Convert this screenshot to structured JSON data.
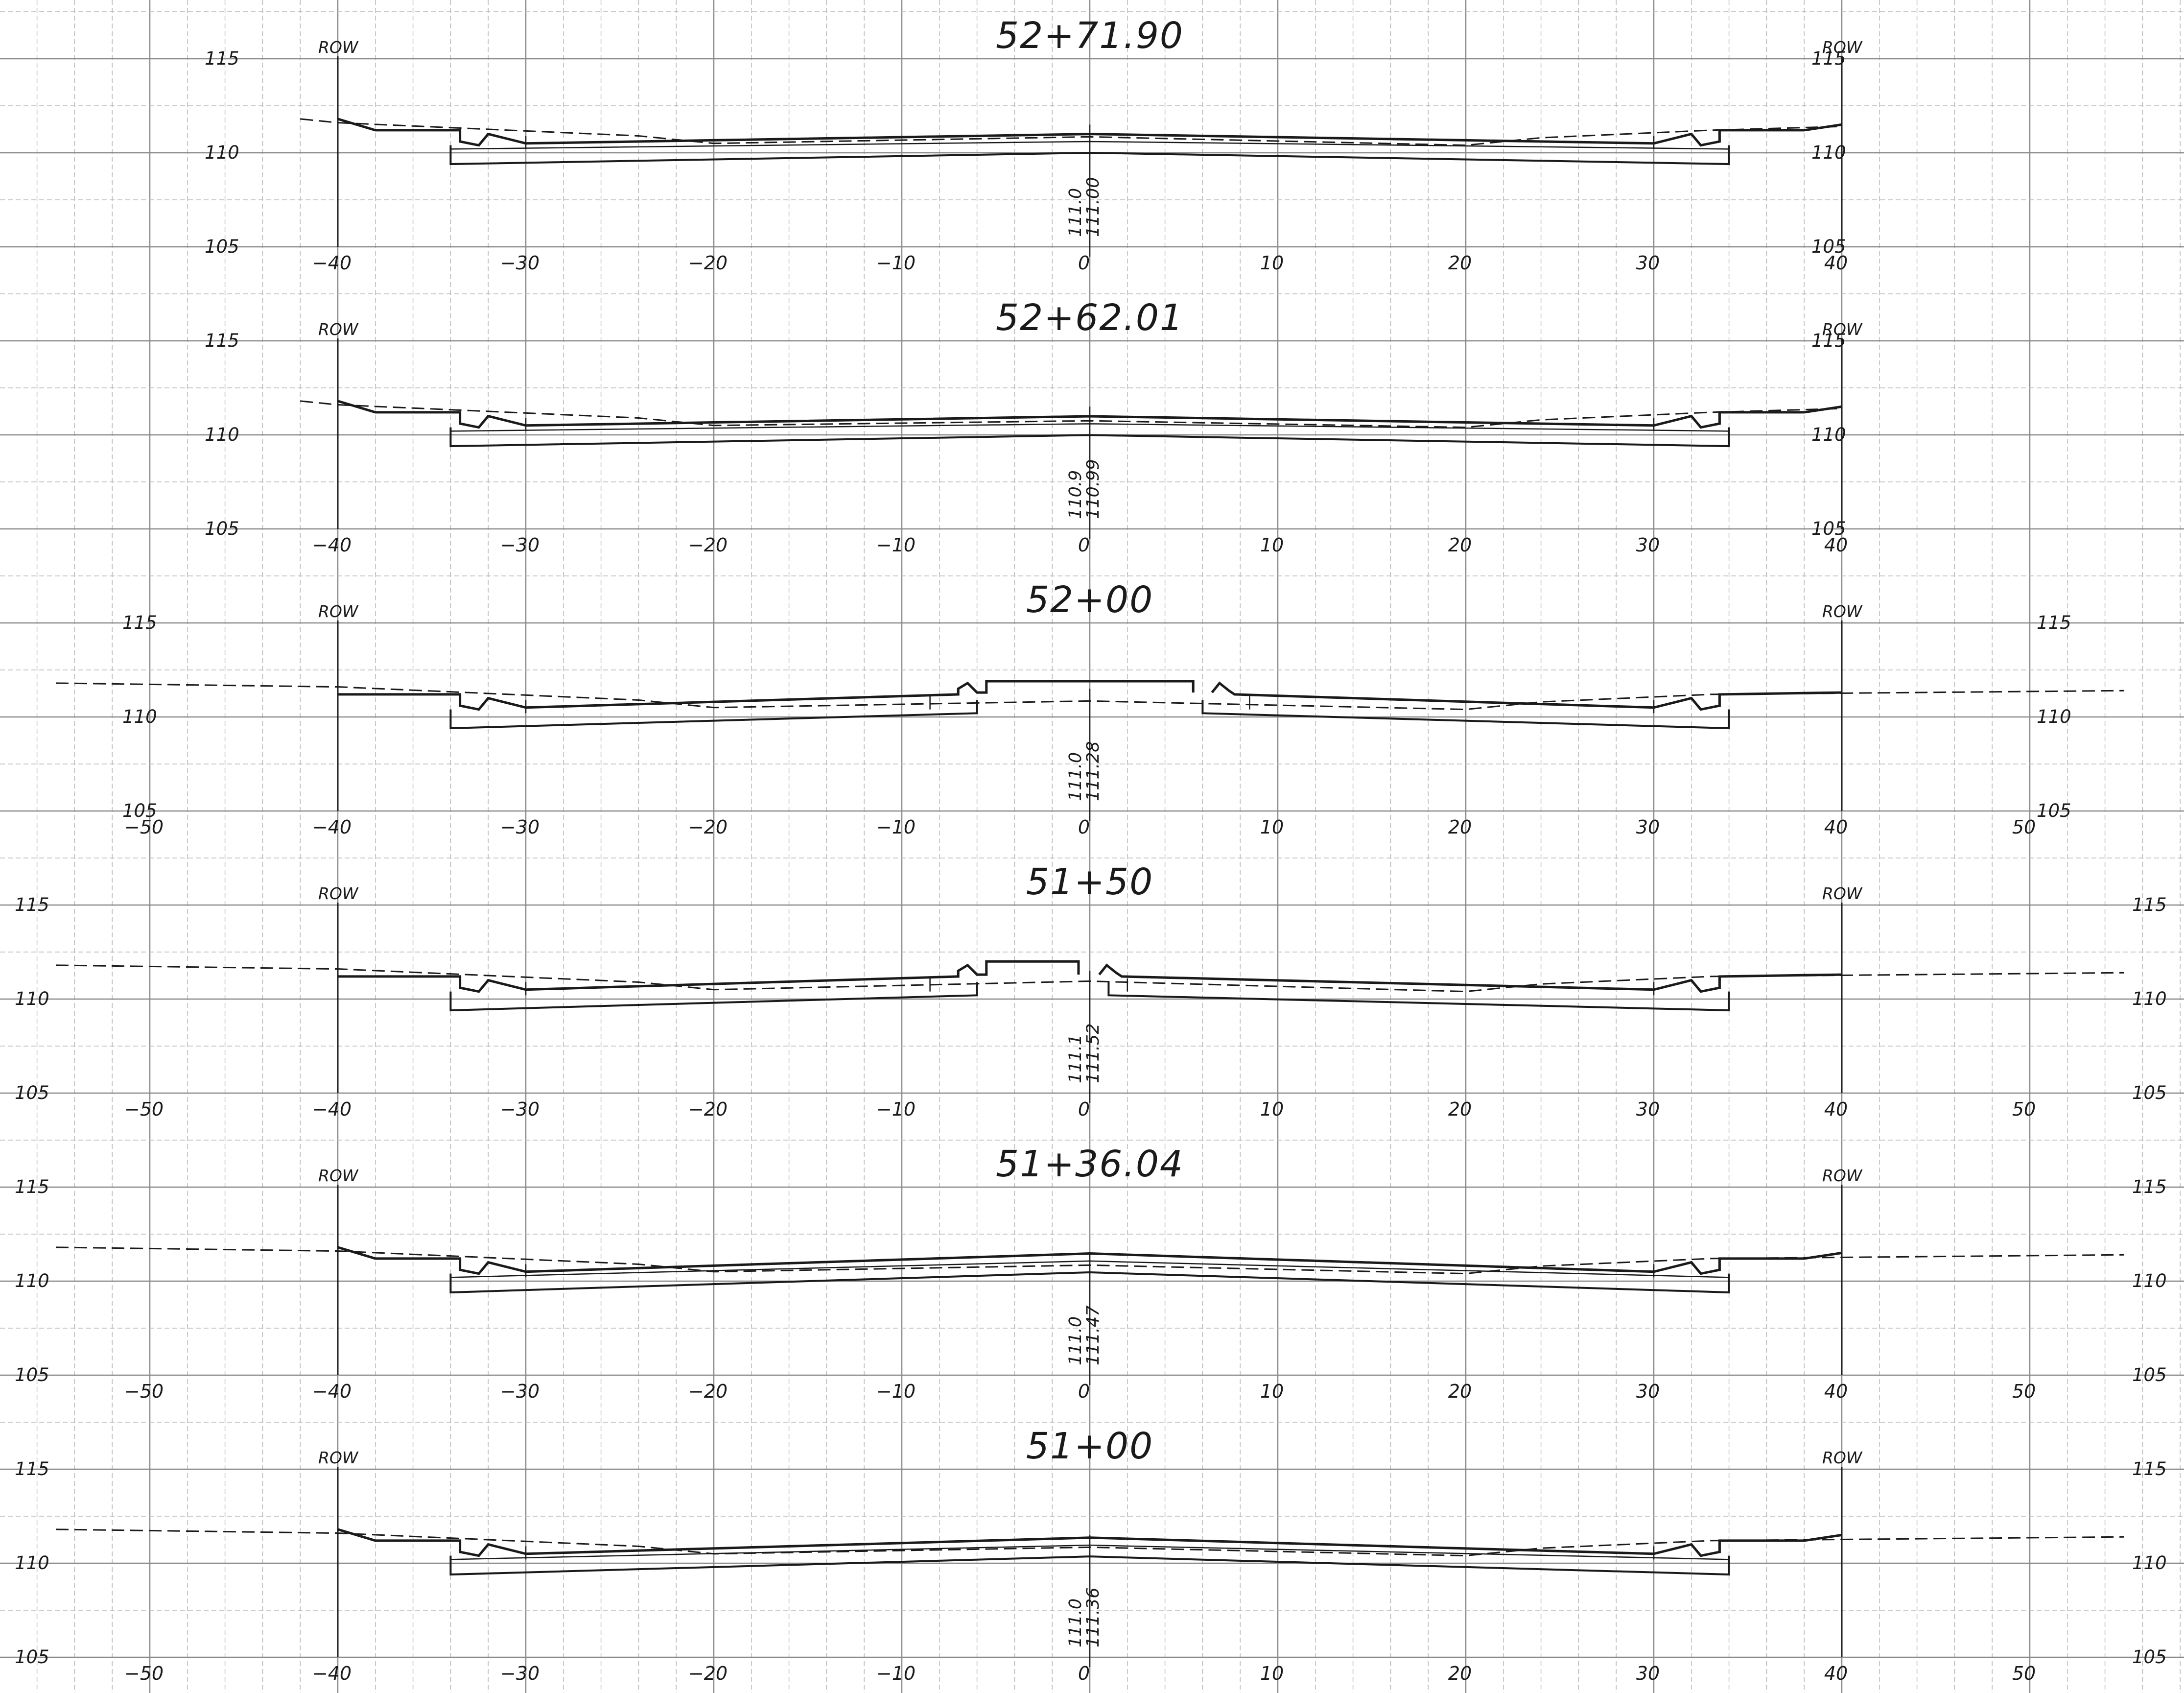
{
  "sheet": {
    "row_label": "ROW",
    "sections": [
      {
        "station": "52+71.90",
        "x_ticks": [
          "-40",
          "-30",
          "-20",
          "-10",
          "0",
          "10",
          "20",
          "30",
          "40"
        ],
        "elev_ticks": [
          "115",
          "110",
          "105"
        ],
        "cl_existing": "111.0",
        "cl_proposed": "111.00",
        "median": false
      },
      {
        "station": "52+62.01",
        "x_ticks": [
          "-40",
          "-30",
          "-20",
          "-10",
          "0",
          "10",
          "20",
          "30",
          "40"
        ],
        "elev_ticks": [
          "115",
          "110",
          "105"
        ],
        "cl_existing": "110.9",
        "cl_proposed": "110.99",
        "median": false
      },
      {
        "station": "52+00",
        "x_ticks": [
          "-50",
          "-40",
          "-30",
          "-20",
          "-10",
          "0",
          "10",
          "20",
          "30",
          "40",
          "50"
        ],
        "elev_ticks": [
          "115",
          "110",
          "105"
        ],
        "cl_existing": "111.0",
        "cl_proposed": "111.28",
        "median": true
      },
      {
        "station": "51+50",
        "x_ticks": [
          "-50",
          "-40",
          "-30",
          "-20",
          "-10",
          "0",
          "10",
          "20",
          "30",
          "40",
          "50"
        ],
        "elev_ticks": [
          "115",
          "110",
          "105"
        ],
        "cl_existing": "111.1",
        "cl_proposed": "111.52",
        "median": true
      },
      {
        "station": "51+36.04",
        "x_ticks": [
          "-50",
          "-40",
          "-30",
          "-20",
          "-10",
          "0",
          "10",
          "20",
          "30",
          "40",
          "50"
        ],
        "elev_ticks": [
          "115",
          "110",
          "105"
        ],
        "cl_existing": "111.0",
        "cl_proposed": "111.47",
        "median": false
      },
      {
        "station": "51+00",
        "x_ticks": [
          "-50",
          "-40",
          "-30",
          "-20",
          "-10",
          "0",
          "10",
          "20",
          "30",
          "40",
          "50"
        ],
        "elev_ticks": [
          "115",
          "110",
          "105"
        ],
        "cl_existing": "111.0",
        "cl_proposed": "111.36",
        "median": false
      }
    ]
  }
}
